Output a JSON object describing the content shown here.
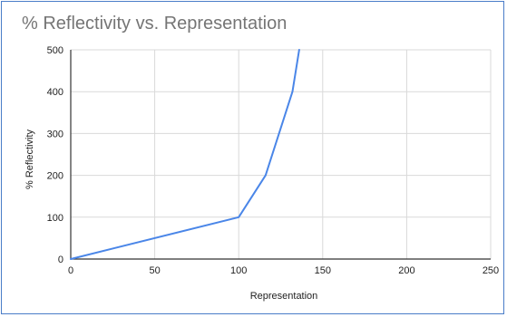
{
  "chart_data": {
    "type": "line",
    "title": "% Reflectivity vs. Representation",
    "xlabel": "Representation",
    "ylabel": "% Reflectivity",
    "xlim": [
      0,
      250
    ],
    "ylim": [
      0,
      500
    ],
    "xticks": [
      0,
      50,
      100,
      150,
      200,
      250
    ],
    "yticks": [
      0,
      100,
      200,
      300,
      400,
      500
    ],
    "grid": true,
    "legend": "none",
    "series": [
      {
        "color": "#4a86e8",
        "x": [
          0,
          100,
          116,
          132,
          136
        ],
        "y": [
          0,
          100,
          200,
          400,
          500
        ]
      }
    ]
  }
}
